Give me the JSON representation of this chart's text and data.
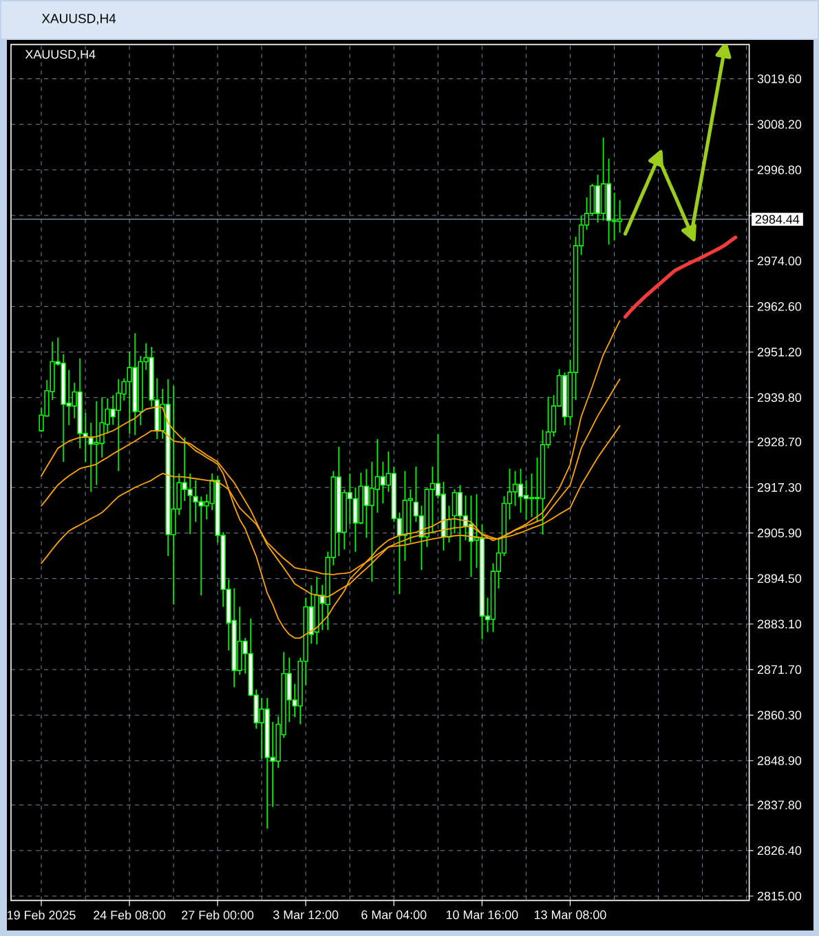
{
  "chart_data": {
    "type": "candlestick",
    "title": "XAUUSD,H4",
    "subtitle": "XAUUSD,H4",
    "color": "#00ff00",
    "categories": [
      "19 Feb 2025",
      null,
      null,
      null,
      null,
      null,
      null,
      null,
      null,
      null,
      null,
      null,
      null,
      null,
      null,
      null,
      "24 Feb 08:00",
      null,
      null,
      null,
      null,
      null,
      null,
      null,
      null,
      null,
      null,
      null,
      null,
      null,
      null,
      null,
      "27 Feb 00:00",
      null,
      null,
      null,
      null,
      null,
      null,
      null,
      null,
      null,
      null,
      null,
      null,
      null,
      null,
      null,
      "3 Mar 12:00",
      null,
      null,
      null,
      null,
      null,
      null,
      null,
      null,
      null,
      null,
      null,
      null,
      null,
      null,
      null,
      "6 Mar 04:00",
      null,
      null,
      null,
      null,
      null,
      null,
      null,
      null,
      null,
      null,
      null,
      null,
      null,
      null,
      null,
      "10 Mar 16:00",
      null,
      null,
      null,
      null,
      null,
      null,
      null,
      null,
      null,
      null,
      null,
      null,
      null,
      null,
      null,
      "13 Mar 08:00",
      null,
      null,
      null,
      null,
      null,
      null,
      null,
      null,
      null,
      null,
      null,
      null,
      null,
      null,
      null,
      null,
      null,
      null,
      null,
      null,
      null,
      null,
      null,
      null,
      null,
      null,
      null,
      null,
      null,
      null,
      null,
      null
    ],
    "ohlc": [
      [
        2931.5,
        2937.3,
        2931.2,
        2935.4
      ],
      [
        2935.2,
        2944.2,
        2935.0,
        2941.5
      ],
      [
        2941.3,
        2953.8,
        2939.2,
        2948.8
      ],
      [
        2948.8,
        2954.8,
        2947.8,
        2948.2
      ],
      [
        2948.4,
        2950.7,
        2923.7,
        2938.1
      ],
      [
        2938.4,
        2946.7,
        2932.9,
        2937.7
      ],
      [
        2937.7,
        2943.5,
        2934.6,
        2941.2
      ],
      [
        2941.2,
        2949.6,
        2927.1,
        2930.8
      ],
      [
        2930.8,
        2936.0,
        2923.7,
        2930.0
      ],
      [
        2929.7,
        2933.5,
        2916.2,
        2928.1
      ],
      [
        2928.1,
        2938.9,
        2917.9,
        2928.5
      ],
      [
        2928.3,
        2939.8,
        2924.8,
        2933.5
      ],
      [
        2933.1,
        2939.6,
        2930.8,
        2936.9
      ],
      [
        2936.9,
        2940.4,
        2933.0,
        2935.0
      ],
      [
        2936.6,
        2944.4,
        2921.4,
        2940.9
      ],
      [
        2940.7,
        2944.6,
        2939.0,
        2943.8
      ],
      [
        2943.8,
        2951.3,
        2930.8,
        2947.3
      ],
      [
        2947.3,
        2955.9,
        2930.4,
        2936.3
      ],
      [
        2936.3,
        2950.2,
        2932.9,
        2948.8
      ],
      [
        2948.8,
        2953.4,
        2946.7,
        2949.8
      ],
      [
        2949.8,
        2952.5,
        2937.5,
        2939.2
      ],
      [
        2939.2,
        2944.6,
        2929.4,
        2931.5
      ],
      [
        2931.5,
        2942.0,
        2929.5,
        2938.1
      ],
      [
        2938.1,
        2944.4,
        2900.1,
        2905.5
      ],
      [
        2905.5,
        2942.7,
        2888.0,
        2911.9
      ],
      [
        2911.9,
        2920.8,
        2910.4,
        2918.5
      ],
      [
        2918.5,
        2929.8,
        2913.9,
        2916.8
      ],
      [
        2916.8,
        2920.8,
        2905.6,
        2915.3
      ],
      [
        2915.0,
        2919.1,
        2908.7,
        2913.7
      ],
      [
        2913.7,
        2915.0,
        2890.3,
        2912.7
      ],
      [
        2912.7,
        2915.6,
        2909.3,
        2913.7
      ],
      [
        2913.3,
        2920.8,
        2911.6,
        2919.1
      ],
      [
        2919.1,
        2920.2,
        2903.5,
        2905.3
      ],
      [
        2905.3,
        2906.1,
        2887.4,
        2891.8
      ],
      [
        2891.8,
        2894.3,
        2876.5,
        2883.4
      ],
      [
        2884.0,
        2892.0,
        2867.3,
        2871.5
      ],
      [
        2871.5,
        2887.4,
        2870.4,
        2878.8
      ],
      [
        2878.8,
        2879.6,
        2870.7,
        2875.7
      ],
      [
        2875.7,
        2884.5,
        2865.0,
        2865.3
      ],
      [
        2865.3,
        2866.7,
        2856.9,
        2858.4
      ],
      [
        2858.4,
        2864.6,
        2849.4,
        2861.8
      ],
      [
        2861.8,
        2864.6,
        2831.9,
        2849.7
      ],
      [
        2849.7,
        2858.6,
        2837.3,
        2848.8
      ],
      [
        2848.8,
        2860.0,
        2847.1,
        2858.0
      ],
      [
        2855.4,
        2876.1,
        2854.6,
        2870.7
      ],
      [
        2870.7,
        2874.7,
        2858.6,
        2864.1
      ],
      [
        2864.1,
        2868.1,
        2859.8,
        2862.6
      ],
      [
        2862.6,
        2874.7,
        2858.0,
        2873.8
      ],
      [
        2873.8,
        2889.7,
        2867.8,
        2887.4
      ],
      [
        2887.4,
        2892.8,
        2878.2,
        2880.5
      ],
      [
        2881.1,
        2894.9,
        2878.0,
        2890.3
      ],
      [
        2890.3,
        2892.9,
        2881.6,
        2888.3
      ],
      [
        2888.0,
        2901.2,
        2881.6,
        2899.8
      ],
      [
        2899.8,
        2921.4,
        2897.8,
        2919.9
      ],
      [
        2919.9,
        2927.5,
        2900.1,
        2906.1
      ],
      [
        2906.1,
        2916.8,
        2901.8,
        2916.0
      ],
      [
        2916.0,
        2920.8,
        2908.1,
        2914.5
      ],
      [
        2914.5,
        2917.3,
        2901.2,
        2908.4
      ],
      [
        2908.4,
        2921.0,
        2908.1,
        2917.6
      ],
      [
        2917.6,
        2921.9,
        2904.7,
        2912.8
      ],
      [
        2912.8,
        2923.7,
        2893.7,
        2917.1
      ],
      [
        2916.8,
        2929.4,
        2911.0,
        2920.0
      ],
      [
        2920.0,
        2923.7,
        2913.3,
        2917.9
      ],
      [
        2917.9,
        2926.3,
        2916.2,
        2920.8
      ],
      [
        2920.8,
        2922.5,
        2908.7,
        2909.5
      ],
      [
        2909.5,
        2911.0,
        2890.6,
        2905.3
      ],
      [
        2905.3,
        2921.4,
        2898.9,
        2914.1
      ],
      [
        2914.1,
        2916.8,
        2903.5,
        2914.5
      ],
      [
        2913.6,
        2922.5,
        2908.7,
        2910.2
      ],
      [
        2910.2,
        2912.7,
        2896.6,
        2904.9
      ],
      [
        2904.9,
        2917.1,
        2902.4,
        2916.8
      ],
      [
        2916.8,
        2922.5,
        2905.8,
        2918.3
      ],
      [
        2918.3,
        2930.6,
        2914.5,
        2915.3
      ],
      [
        2915.6,
        2918.7,
        2901.5,
        2904.9
      ],
      [
        2904.9,
        2912.7,
        2903.5,
        2909.3
      ],
      [
        2910.2,
        2916.8,
        2905.8,
        2916.0
      ],
      [
        2916.0,
        2917.9,
        2898.9,
        2910.2
      ],
      [
        2910.2,
        2915.3,
        2904.1,
        2907.6
      ],
      [
        2908.1,
        2915.3,
        2894.9,
        2903.8
      ],
      [
        2904.1,
        2915.6,
        2897.2,
        2904.7
      ],
      [
        2904.5,
        2908.1,
        2879.3,
        2885.1
      ],
      [
        2885.1,
        2889.7,
        2881.1,
        2884.2
      ],
      [
        2884.3,
        2898.3,
        2881.1,
        2896.3
      ],
      [
        2896.3,
        2904.7,
        2892.0,
        2900.9
      ],
      [
        2900.9,
        2915.1,
        2900.1,
        2913.3
      ],
      [
        2913.3,
        2922.0,
        2909.3,
        2916.2
      ],
      [
        2916.2,
        2921.4,
        2912.7,
        2918.1
      ],
      [
        2918.1,
        2922.0,
        2911.0,
        2915.0
      ],
      [
        2915.3,
        2919.1,
        2909.3,
        2914.5
      ],
      [
        2914.5,
        2920.8,
        2909.9,
        2914.8
      ],
      [
        2914.8,
        2924.8,
        2908.7,
        2914.5
      ],
      [
        2914.5,
        2931.7,
        2905.5,
        2928.0
      ],
      [
        2928.0,
        2940.0,
        2927.1,
        2931.2
      ],
      [
        2931.2,
        2940.4,
        2930.0,
        2937.7
      ],
      [
        2937.7,
        2946.9,
        2937.5,
        2945.3
      ],
      [
        2945.3,
        2946.1,
        2932.9,
        2935.0
      ],
      [
        2935.0,
        2949.2,
        2932.9,
        2946.1
      ],
      [
        2946.1,
        2980.1,
        2939.2,
        2977.8
      ],
      [
        2977.8,
        2985.3,
        2975.5,
        2983.0
      ],
      [
        2983.0,
        2989.9,
        2981.8,
        2985.9
      ],
      [
        2985.9,
        2993.3,
        2985.3,
        2992.8
      ],
      [
        2992.8,
        2995.6,
        2983.6,
        2985.9
      ],
      [
        2985.9,
        3004.9,
        2984.1,
        2993.3
      ],
      [
        2993.3,
        2999.6,
        2978.1,
        2984.1
      ],
      [
        2984.1,
        2991.1,
        2979.1,
        2983.9
      ],
      [
        2983.9,
        2989.2,
        2981.1,
        2984.44
      ],
      null,
      null,
      null,
      null,
      null,
      null,
      null,
      null,
      null,
      null,
      null,
      null,
      null,
      null,
      null,
      null,
      null,
      null,
      null,
      null,
      null,
      null,
      null
    ],
    "series": [
      {
        "type": "line",
        "color": "#ffa500",
        "values": [
          2920.2,
          2922.5,
          2924.8,
          2927.1,
          2928.0,
          2928.9,
          2929.4,
          2929.8,
          2929.9,
          2929.9,
          2930.0,
          2930.5,
          2931.0,
          2931.5,
          2932.3,
          2933.1,
          2933.9,
          2934.6,
          2935.8,
          2936.9,
          2937.2,
          2937.5,
          2937.3,
          2933.5,
          2931.7,
          2930.3,
          2928.9,
          2927.7,
          2926.5,
          2925.7,
          2924.8,
          2924.0,
          2923.1,
          2920.8,
          2916.8,
          2912.7,
          2909.3,
          2907.0,
          2903.5,
          2900.1,
          2895.5,
          2890.9,
          2888.0,
          2884.5,
          2882.2,
          2880.5,
          2879.6,
          2879.6,
          2880.5,
          2881.4,
          2882.2,
          2883.7,
          2885.1,
          2887.4,
          2889.4,
          2891.4,
          2894.3,
          2895.8,
          2897.2,
          2898.7,
          2900.1,
          2901.8,
          2903.0,
          2904.1,
          2904.7,
          2905.3,
          2905.6,
          2905.8,
          2906.1,
          2906.6,
          2907.1,
          2907.6,
          2908.4,
          2909.1,
          2909.3,
          2909.5,
          2909.2,
          2909.0,
          2908.7,
          2907.1,
          2905.5,
          2904.8,
          2904.0,
          2904.6,
          2905.2,
          2905.9,
          2906.7,
          2907.4,
          2908.1,
          2909.1,
          2910.0,
          2911.0,
          2913.0,
          2915.0,
          2917.0,
          2920.0,
          2923.0,
          2929.0,
          2935.0,
          2938.8,
          2942.5,
          2946.5,
          2950.5,
          2953.3,
          2956.2,
          2959.0,
          null,
          null,
          null,
          null,
          null,
          null,
          null,
          null,
          null,
          null,
          null,
          null,
          null,
          null,
          null,
          null,
          null,
          null,
          null,
          null,
          null,
          null,
          null
        ]
      },
      {
        "type": "line",
        "color": "#ffa500",
        "values": [
          2912.7,
          2914.4,
          2916.2,
          2917.9,
          2919.1,
          2920.2,
          2921.1,
          2922.0,
          2922.4,
          2922.7,
          2923.1,
          2924.0,
          2924.8,
          2925.7,
          2926.5,
          2927.3,
          2928.1,
          2928.9,
          2929.8,
          2930.6,
          2931.5,
          2931.5,
          2931.5,
          2930.2,
          2928.9,
          2928.7,
          2928.5,
          2928.3,
          2927.3,
          2926.4,
          2925.4,
          2924.6,
          2923.7,
          2922.0,
          2920.2,
          2918.5,
          2916.2,
          2913.9,
          2911.6,
          2908.7,
          2905.8,
          2902.9,
          2901.0,
          2899.1,
          2897.2,
          2895.2,
          2893.2,
          2892.3,
          2891.5,
          2890.6,
          2890.4,
          2890.1,
          2889.9,
          2890.7,
          2891.6,
          2892.4,
          2893.2,
          2894.5,
          2895.8,
          2897.0,
          2898.3,
          2899.7,
          2901.0,
          2902.4,
          2903.0,
          2903.6,
          2904.1,
          2904.7,
          2905.1,
          2905.4,
          2905.8,
          2906.1,
          2906.4,
          2906.7,
          2906.9,
          2907.2,
          2907.3,
          2907.5,
          2907.6,
          2906.6,
          2905.6,
          2905.2,
          2904.7,
          2904.3,
          2905.1,
          2905.8,
          2906.6,
          2907.1,
          2907.7,
          2908.2,
          2908.8,
          2909.3,
          2911.0,
          2912.8,
          2914.5,
          2916.2,
          2917.9,
          2922.5,
          2927.1,
          2929.8,
          2932.5,
          2935.2,
          2937.5,
          2939.8,
          2942.1,
          2944.4,
          null,
          null,
          null,
          null,
          null,
          null,
          null,
          null,
          null,
          null,
          null,
          null,
          null,
          null,
          null,
          null,
          null,
          null,
          null,
          null,
          null,
          null,
          null
        ]
      },
      {
        "type": "line",
        "color": "#ffa500",
        "values": [
          2898.3,
          2900.0,
          2901.8,
          2903.5,
          2905.0,
          2906.4,
          2907.2,
          2907.9,
          2908.7,
          2909.5,
          2910.2,
          2911.0,
          2912.3,
          2913.7,
          2915.0,
          2915.8,
          2916.5,
          2917.3,
          2917.9,
          2918.5,
          2919.1,
          2920.0,
          2920.8,
          2920.4,
          2920.0,
          2920.0,
          2919.9,
          2919.7,
          2919.5,
          2919.3,
          2919.1,
          2918.9,
          2918.7,
          2917.8,
          2916.8,
          2914.5,
          2912.2,
          2910.8,
          2909.5,
          2908.1,
          2905.8,
          2903.5,
          2902.2,
          2900.8,
          2899.5,
          2898.4,
          2897.2,
          2896.9,
          2896.7,
          2896.4,
          2896.1,
          2895.7,
          2895.6,
          2895.5,
          2895.7,
          2895.8,
          2896.0,
          2896.9,
          2897.8,
          2898.6,
          2899.5,
          2900.5,
          2901.4,
          2902.4,
          2902.6,
          2902.7,
          2902.9,
          2903.2,
          2903.5,
          2903.8,
          2904.1,
          2904.4,
          2904.6,
          2904.9,
          2905.0,
          2905.2,
          2905.3,
          2905.2,
          2905.0,
          2904.9,
          2904.7,
          2904.6,
          2904.5,
          2904.4,
          2904.8,
          2905.1,
          2905.5,
          2906.0,
          2906.5,
          2907.1,
          2907.6,
          2908.1,
          2908.9,
          2909.7,
          2910.6,
          2911.4,
          2912.2,
          2915.1,
          2917.9,
          2920.2,
          2922.5,
          2924.8,
          2926.8,
          2928.7,
          2930.7,
          2932.7,
          null,
          null,
          null,
          null,
          null,
          null,
          null,
          null,
          null,
          null,
          null,
          null,
          null,
          null,
          null,
          null,
          null,
          null,
          null,
          null,
          null,
          null,
          null
        ]
      },
      {
        "type": "line",
        "color": "#f03c3c",
        "values": [
          null,
          null,
          null,
          null,
          null,
          null,
          null,
          null,
          null,
          null,
          null,
          null,
          null,
          null,
          null,
          null,
          null,
          null,
          null,
          null,
          null,
          null,
          null,
          null,
          null,
          null,
          null,
          null,
          null,
          null,
          null,
          null,
          null,
          null,
          null,
          null,
          null,
          null,
          null,
          null,
          null,
          null,
          null,
          null,
          null,
          null,
          null,
          null,
          null,
          null,
          null,
          null,
          null,
          null,
          null,
          null,
          null,
          null,
          null,
          null,
          null,
          null,
          null,
          null,
          null,
          null,
          null,
          null,
          null,
          null,
          null,
          null,
          null,
          null,
          null,
          null,
          null,
          null,
          null,
          null,
          null,
          null,
          null,
          null,
          null,
          null,
          null,
          null,
          null,
          null,
          null,
          null,
          null,
          null,
          null,
          null,
          null,
          null,
          null,
          null,
          null,
          null,
          null,
          null,
          null,
          null,
          2960.0,
          2961.6,
          2963.0,
          2964.3,
          2965.6,
          2966.8,
          2968.0,
          2969.2,
          2970.4,
          2971.6,
          2972.3,
          2973.0,
          2973.7,
          2974.3,
          2975.0,
          2975.7,
          2976.4,
          2977.1,
          2977.9,
          2978.9,
          2979.9,
          null,
          null
        ]
      },
      {
        "type": "line",
        "color": "#9ccc1c",
        "values": [
          null,
          null,
          null,
          null,
          null,
          null,
          null,
          null,
          null,
          null,
          null,
          null,
          null,
          null,
          null,
          null,
          null,
          null,
          null,
          null,
          null,
          null,
          null,
          null,
          null,
          null,
          null,
          null,
          null,
          null,
          null,
          null,
          null,
          null,
          null,
          null,
          null,
          null,
          null,
          null,
          null,
          null,
          null,
          null,
          null,
          null,
          null,
          null,
          null,
          null,
          null,
          null,
          null,
          null,
          null,
          null,
          null,
          null,
          null,
          null,
          null,
          null,
          null,
          null,
          null,
          null,
          null,
          null,
          null,
          null,
          null,
          null,
          null,
          null,
          null,
          null,
          null,
          null,
          null,
          null,
          null,
          null,
          null,
          null,
          null,
          null,
          null,
          null,
          null,
          null,
          null,
          null,
          null,
          null,
          null,
          null,
          null,
          null,
          null,
          null,
          null,
          null,
          null,
          null,
          null,
          null,
          2980.8,
          2984.0,
          2987.2,
          2990.4,
          2993.5,
          2996.7,
          2999.9,
          null,
          null,
          null,
          null,
          null,
          null,
          null,
          null,
          null,
          null,
          null,
          null,
          null,
          null,
          null,
          null
        ]
      },
      {
        "type": "line",
        "color": "#9ccc1c",
        "values": [
          null,
          null,
          null,
          null,
          null,
          null,
          null,
          null,
          null,
          null,
          null,
          null,
          null,
          null,
          null,
          null,
          null,
          null,
          null,
          null,
          null,
          null,
          null,
          null,
          null,
          null,
          null,
          null,
          null,
          null,
          null,
          null,
          null,
          null,
          null,
          null,
          null,
          null,
          null,
          null,
          null,
          null,
          null,
          null,
          null,
          null,
          null,
          null,
          null,
          null,
          null,
          null,
          null,
          null,
          null,
          null,
          null,
          null,
          null,
          null,
          null,
          null,
          null,
          null,
          null,
          null,
          null,
          null,
          null,
          null,
          null,
          null,
          null,
          null,
          null,
          null,
          null,
          null,
          null,
          null,
          null,
          null,
          null,
          null,
          null,
          null,
          null,
          null,
          null,
          null,
          null,
          null,
          null,
          null,
          null,
          null,
          null,
          null,
          null,
          null,
          null,
          null,
          null,
          null,
          null,
          null,
          null,
          null,
          null,
          null,
          null,
          null,
          2999.9,
          2996.7,
          2993.5,
          2990.4,
          2987.2,
          2984.0,
          2980.8,
          null,
          null,
          null,
          null,
          null,
          null,
          null,
          null,
          null,
          null
        ]
      },
      {
        "type": "line",
        "color": "#9ccc1c",
        "values": [
          null,
          null,
          null,
          null,
          null,
          null,
          null,
          null,
          null,
          null,
          null,
          null,
          null,
          null,
          null,
          null,
          null,
          null,
          null,
          null,
          null,
          null,
          null,
          null,
          null,
          null,
          null,
          null,
          null,
          null,
          null,
          null,
          null,
          null,
          null,
          null,
          null,
          null,
          null,
          null,
          null,
          null,
          null,
          null,
          null,
          null,
          null,
          null,
          null,
          null,
          null,
          null,
          null,
          null,
          null,
          null,
          null,
          null,
          null,
          null,
          null,
          null,
          null,
          null,
          null,
          null,
          null,
          null,
          null,
          null,
          null,
          null,
          null,
          null,
          null,
          null,
          null,
          null,
          null,
          null,
          null,
          null,
          null,
          null,
          null,
          null,
          null,
          null,
          null,
          null,
          null,
          null,
          null,
          null,
          null,
          null,
          null,
          null,
          null,
          null,
          null,
          null,
          null,
          null,
          null,
          null,
          null,
          null,
          null,
          null,
          null,
          null,
          null,
          null,
          null,
          null,
          null,
          null,
          2980.8,
          2988.5,
          2996.1,
          3003.8,
          3011.5,
          3019.1,
          3026.8,
          null,
          null,
          null,
          null
        ]
      }
    ],
    "ylim": [
      2813.9,
      3028.2
    ],
    "yticks": [
      {
        "value": 2815.0,
        "label": "2815.00"
      },
      {
        "value": 2826.4,
        "label": "2826.40"
      },
      {
        "value": 2837.8,
        "label": "2837.80"
      },
      {
        "value": 2848.9,
        "label": "2848.90"
      },
      {
        "value": 2860.3,
        "label": "2860.30"
      },
      {
        "value": 2871.7,
        "label": "2871.70"
      },
      {
        "value": 2883.1,
        "label": "2883.10"
      },
      {
        "value": 2894.5,
        "label": "2894.50"
      },
      {
        "value": 2905.9,
        "label": "2905.90"
      },
      {
        "value": 2917.3,
        "label": "2917.30"
      },
      {
        "value": 2928.7,
        "label": "2928.70"
      },
      {
        "value": 2939.8,
        "label": "2939.80"
      },
      {
        "value": 2951.2,
        "label": "2951.20"
      },
      {
        "value": 2962.6,
        "label": "2962.60"
      },
      {
        "value": 2974.0,
        "label": "2974.00"
      },
      {
        "value": 2985.4,
        "label": null
      },
      {
        "value": 2996.8,
        "label": "2996.80"
      },
      {
        "value": 3008.2,
        "label": "3008.20"
      },
      {
        "value": 3019.6,
        "label": "3019.60"
      }
    ],
    "grid": true,
    "ref_lines": [
      {
        "axis": "y",
        "value": 2984.44,
        "label": "2984.44",
        "color": "#778899"
      }
    ]
  }
}
